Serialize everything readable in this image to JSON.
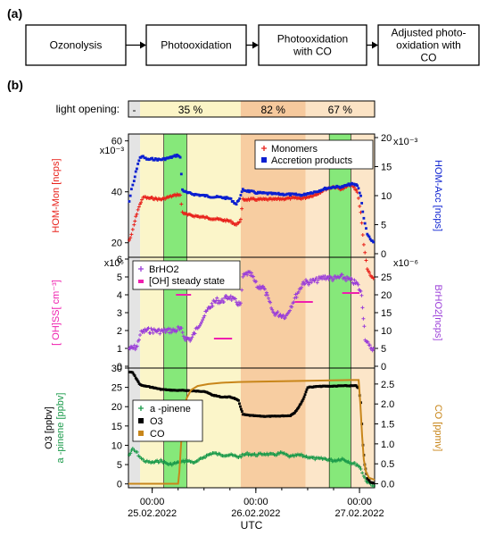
{
  "panel_a": {
    "label": "(a)",
    "steps": [
      "Ozonolysis",
      "Photooxidation",
      "Photooxidation\nwith CO",
      "Adjusted photo-\noxidation with\nCO"
    ]
  },
  "panel_b": {
    "label": "(b)",
    "light_label": "light opening:",
    "light_segments": [
      {
        "label": "-",
        "color": "#e2e2e2"
      },
      {
        "label": "35 %",
        "color": "#fbf4c6"
      },
      {
        "label": "82 %",
        "color": "#f6c99d"
      },
      {
        "label": "67 %",
        "color": "#fbe3c5"
      }
    ],
    "phase_colors": {
      "dark": "#e4e4e4",
      "p35": "#fbf5c9",
      "p82": "#f7cda1",
      "p67": "#fce6c9",
      "co_flag": "#86e87a"
    },
    "xlabel": "UTC",
    "xticks": [
      {
        "value": 0.0,
        "time": "00:00",
        "date": "25.02.2022"
      },
      {
        "value": 24.0,
        "time": "00:00",
        "date": "26.02.2022"
      },
      {
        "value": 48.0,
        "time": "00:00",
        "date": "27.02.2022"
      }
    ],
    "x_range_hours": [
      -5.5,
      51.5
    ],
    "phase_boundaries_hours": {
      "start": -5.5,
      "light_on": -2.8,
      "co_start": 5.5,
      "p82_start": 20.5,
      "p67_start": 35.5,
      "co2_start": 38.8,
      "co2_end": 44.0,
      "light_off": 49.0,
      "end": 51.5
    }
  },
  "chart_data": [
    {
      "type": "scatter",
      "panel": "top",
      "ylabel_left": "HOM-Mon [ncps]",
      "ylabel_right": "HOM-Acc [ncps]",
      "left_multiplier": "x10⁻³",
      "right_multiplier": "x10⁻³",
      "ylim_left": [
        15,
        62
      ],
      "ylim_right": [
        0,
        20
      ],
      "yticks_left": [
        20,
        40,
        60
      ],
      "yticks_right": [
        0,
        5,
        10,
        15,
        20
      ],
      "legend_position": "top-right",
      "series": [
        {
          "name": "Monomers",
          "axis": "left",
          "color": "#e8211a",
          "marker": "+",
          "x": [
            -5.3,
            -4.8,
            -4.2,
            -3.8,
            -3.3,
            -2.8,
            -2.4,
            -1.8,
            -1.0,
            0,
            2,
            4,
            6,
            6.5,
            7,
            8,
            10,
            12,
            14,
            16,
            18,
            19.5,
            20.5,
            21,
            24,
            28,
            32,
            35,
            36,
            38,
            40,
            42,
            44,
            46,
            47.5,
            48.3,
            49,
            49.8,
            50.5,
            51.2
          ],
          "y": [
            21,
            23,
            27,
            30,
            33,
            35,
            37,
            38,
            37.5,
            37.5,
            37,
            38,
            39,
            38.5,
            32,
            31,
            30.5,
            30,
            29.5,
            29,
            28.5,
            27,
            29,
            37,
            37,
            37,
            37.5,
            37.5,
            38,
            39,
            41,
            42,
            41,
            43,
            40,
            32,
            19,
            10,
            7,
            6
          ]
        },
        {
          "name": "Accretion products",
          "axis": "right",
          "color": "#0a1fd0",
          "marker": "square",
          "x": [
            -5.3,
            -4.8,
            -4.2,
            -3.8,
            -3.3,
            -2.8,
            -2.4,
            -1.8,
            -1.0,
            0,
            2,
            4,
            6,
            6.5,
            7,
            8,
            10,
            12,
            14,
            16,
            18,
            19.5,
            20.5,
            21,
            24,
            28,
            32,
            35,
            36,
            38,
            40,
            42,
            44,
            46,
            47.5,
            48.3,
            49,
            49.8,
            50.5,
            51.2
          ],
          "y": [
            9,
            11,
            12.5,
            14,
            15.5,
            16.5,
            16.8,
            16.5,
            16.2,
            16.3,
            16.2,
            16.5,
            17,
            16.5,
            11,
            10.5,
            10.2,
            10,
            9.8,
            9.7,
            9.5,
            8.5,
            10,
            11,
            10.5,
            10.3,
            10.2,
            10.1,
            10.4,
            10.7,
            11.2,
            11.5,
            11.5,
            12,
            11.8,
            10,
            6,
            3.5,
            2.4,
            2
          ]
        }
      ]
    },
    {
      "type": "scatter",
      "panel": "middle",
      "ylabel_left": "[ OH]SS[ cm⁻³]",
      "ylabel_right": "BrHO2[ncps]",
      "left_multiplier": "x10⁶",
      "right_multiplier": "x10⁻⁶",
      "ylim_left": [
        0,
        6
      ],
      "ylim_right": [
        0,
        30
      ],
      "yticks_left": [
        0,
        1,
        2,
        3,
        4,
        5,
        6
      ],
      "yticks_right": [
        0,
        5,
        10,
        15,
        20,
        25
      ],
      "legend_position": "top-left",
      "series": [
        {
          "name": "BrHO2",
          "axis": "right",
          "color": "#9b3fd8",
          "marker": "+",
          "x": [
            -5.3,
            -4.5,
            -3.5,
            -2.8,
            -2.3,
            -1.5,
            0,
            2,
            4,
            5.5,
            6,
            6.8,
            7.5,
            9,
            11,
            13,
            14,
            15,
            16,
            17,
            18,
            18.8,
            19.5,
            20.5,
            21,
            22,
            23,
            24.5,
            25.5,
            26.5,
            28,
            31,
            33,
            35,
            36,
            38,
            40,
            42,
            44,
            46,
            47.5,
            48.5,
            49.3,
            50.2,
            51.2
          ],
          "y": [
            5,
            5,
            5.5,
            9,
            9.5,
            10,
            10,
            9.8,
            10,
            10,
            10.5,
            10,
            8,
            7.5,
            12,
            16,
            17.5,
            18.5,
            18,
            19,
            19.5,
            18.5,
            18,
            17,
            25,
            26,
            25.5,
            22,
            22.5,
            20,
            15,
            14,
            19,
            23.5,
            23.5,
            24,
            25,
            24.5,
            25,
            24,
            23,
            20,
            8,
            5.5,
            5
          ]
        },
        {
          "name": "[OH] steady state",
          "axis": "left",
          "color": "#ef1fae",
          "marker": "bar",
          "segments": [
            {
              "x0": 5.5,
              "x1": 9.0,
              "y": 4.0
            },
            {
              "x0": 14.3,
              "x1": 18.5,
              "y": 1.55
            },
            {
              "x0": 33.0,
              "x1": 37.2,
              "y": 3.6
            },
            {
              "x0": 44.0,
              "x1": 48.0,
              "y": 4.1
            }
          ]
        }
      ]
    },
    {
      "type": "scatter",
      "panel": "bottom",
      "ylabel_left": "O3 [ppbv]\na -pinene [ppbv]",
      "ylabel_right": "CO [ppmv]",
      "ylim_left": [
        -1,
        30
      ],
      "ylim_right": [
        -0.1,
        2.9
      ],
      "yticks_left": [
        0,
        5,
        10,
        15,
        20,
        25,
        30
      ],
      "yticks_right": [
        0.0,
        0.5,
        1.0,
        1.5,
        2.0,
        2.5
      ],
      "legend_position": "middle-left",
      "series": [
        {
          "name": "a -pinene",
          "axis": "left",
          "color": "#1a9a4a",
          "marker": "+",
          "x": [
            -5.3,
            -4.5,
            -3.5,
            -2.5,
            -1.5,
            0,
            2,
            4,
            6,
            8,
            10,
            12,
            14,
            16,
            18,
            20,
            22,
            24,
            26,
            28,
            30,
            32,
            34,
            36,
            38,
            40,
            42,
            44,
            46,
            47.5,
            48.3,
            49,
            49.8,
            50.6,
            51.3
          ],
          "y": [
            7.5,
            9,
            8,
            6.5,
            5.8,
            5.5,
            6,
            5,
            5.5,
            6,
            5.5,
            7,
            8,
            7.5,
            7.5,
            7,
            7.8,
            7.5,
            7.8,
            7.5,
            8,
            7,
            7.5,
            7,
            6.5,
            6.5,
            6,
            6.5,
            5.5,
            5,
            4,
            2,
            0.5,
            0,
            -0.5
          ]
        },
        {
          "name": "O3",
          "axis": "left",
          "color": "#000000",
          "marker": "square",
          "x": [
            -5.3,
            -4.5,
            -3.8,
            -3.0,
            -2.5,
            0,
            2,
            4,
            6,
            8,
            10,
            12,
            14,
            16,
            18,
            19,
            20,
            21,
            22,
            24,
            26,
            28,
            30,
            32,
            33,
            34,
            35,
            36,
            38,
            40,
            42,
            44,
            46,
            47.2,
            47.8,
            48.3,
            48.8,
            49.2,
            49.8,
            50.5,
            51.2
          ],
          "y": [
            29,
            28.8,
            27.5,
            26,
            25.5,
            25,
            24.5,
            24.3,
            24.2,
            24.2,
            24,
            24,
            23,
            22.5,
            22.5,
            22.2,
            21.5,
            18,
            17.8,
            17.6,
            17.5,
            17.5,
            17.6,
            17.7,
            18.5,
            20,
            22,
            25,
            25.2,
            25.3,
            25.3,
            25.4,
            25.4,
            25.4,
            24.8,
            21,
            10,
            5,
            1.5,
            0.5,
            0.2
          ]
        },
        {
          "name": "CO",
          "axis": "right",
          "color": "#c8861a",
          "marker": "line",
          "x": [
            -5.5,
            6.0,
            6.3,
            6.8,
            7.3,
            8.0,
            9.0,
            10.5,
            13,
            16,
            20,
            24,
            30,
            36,
            42,
            46,
            47.8,
            48.2,
            48.6,
            49.0,
            49.5,
            50.2,
            51.5
          ],
          "y": [
            0.0,
            0.0,
            0.3,
            1.2,
            1.8,
            2.15,
            2.35,
            2.45,
            2.5,
            2.53,
            2.55,
            2.56,
            2.57,
            2.58,
            2.59,
            2.6,
            2.6,
            2.0,
            1.2,
            0.6,
            0.3,
            0.15,
            0.1
          ]
        }
      ]
    }
  ]
}
